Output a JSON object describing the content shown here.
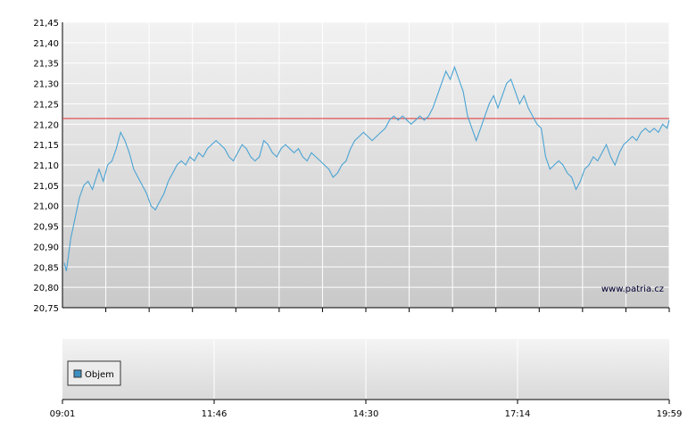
{
  "watermark": "www.patria.cz",
  "legend": {
    "label": "Objem"
  },
  "colors": {
    "price_line": "#4aa3d3",
    "reference_line": "#e03030",
    "legend_swatch": "#3d8fc0"
  },
  "chart_data": {
    "type": "line",
    "title": "",
    "xlabel": "",
    "ylabel": "",
    "grid": true,
    "ylim": [
      20.75,
      21.45
    ],
    "y_ticks": [
      "20,75",
      "20,80",
      "20,85",
      "20,90",
      "20,95",
      "21,00",
      "21,05",
      "21,10",
      "21,15",
      "21,20",
      "21,25",
      "21,30",
      "21,35",
      "21,40",
      "21,45"
    ],
    "x_tick_labels": [
      "09:01",
      "11:46",
      "14:30",
      "17:14",
      "19:59"
    ],
    "reference_line": 21.214,
    "series": [
      {
        "values": [
          [
            0,
            20.86
          ],
          [
            1,
            20.84
          ],
          [
            3,
            20.92
          ],
          [
            5,
            20.97
          ],
          [
            7,
            21.02
          ],
          [
            9,
            21.05
          ],
          [
            11,
            21.06
          ],
          [
            13,
            21.04
          ],
          [
            16,
            21.09
          ],
          [
            18,
            21.06
          ],
          [
            20,
            21.1
          ],
          [
            22,
            21.11
          ],
          [
            24,
            21.14
          ],
          [
            26,
            21.18
          ],
          [
            28,
            21.16
          ],
          [
            30,
            21.13
          ],
          [
            32,
            21.09
          ],
          [
            34,
            21.07
          ],
          [
            36,
            21.05
          ],
          [
            38,
            21.03
          ],
          [
            40,
            21.0
          ],
          [
            42,
            20.99
          ],
          [
            44,
            21.01
          ],
          [
            46,
            21.03
          ],
          [
            48,
            21.06
          ],
          [
            50,
            21.08
          ],
          [
            52,
            21.1
          ],
          [
            54,
            21.11
          ],
          [
            56,
            21.1
          ],
          [
            58,
            21.12
          ],
          [
            60,
            21.11
          ],
          [
            62,
            21.13
          ],
          [
            64,
            21.12
          ],
          [
            66,
            21.14
          ],
          [
            68,
            21.15
          ],
          [
            70,
            21.16
          ],
          [
            72,
            21.15
          ],
          [
            74,
            21.14
          ],
          [
            76,
            21.12
          ],
          [
            78,
            21.11
          ],
          [
            80,
            21.13
          ],
          [
            82,
            21.15
          ],
          [
            84,
            21.14
          ],
          [
            86,
            21.12
          ],
          [
            88,
            21.11
          ],
          [
            90,
            21.12
          ],
          [
            92,
            21.16
          ],
          [
            94,
            21.15
          ],
          [
            96,
            21.13
          ],
          [
            98,
            21.12
          ],
          [
            100,
            21.14
          ],
          [
            102,
            21.15
          ],
          [
            104,
            21.14
          ],
          [
            106,
            21.13
          ],
          [
            108,
            21.14
          ],
          [
            110,
            21.12
          ],
          [
            112,
            21.11
          ],
          [
            114,
            21.13
          ],
          [
            116,
            21.12
          ],
          [
            118,
            21.11
          ],
          [
            120,
            21.1
          ],
          [
            122,
            21.09
          ],
          [
            124,
            21.07
          ],
          [
            126,
            21.08
          ],
          [
            128,
            21.1
          ],
          [
            130,
            21.11
          ],
          [
            132,
            21.14
          ],
          [
            134,
            21.16
          ],
          [
            136,
            21.17
          ],
          [
            138,
            21.18
          ],
          [
            140,
            21.17
          ],
          [
            142,
            21.16
          ],
          [
            144,
            21.17
          ],
          [
            146,
            21.18
          ],
          [
            148,
            21.19
          ],
          [
            150,
            21.21
          ],
          [
            152,
            21.22
          ],
          [
            154,
            21.21
          ],
          [
            156,
            21.22
          ],
          [
            158,
            21.21
          ],
          [
            160,
            21.2
          ],
          [
            162,
            21.21
          ],
          [
            164,
            21.22
          ],
          [
            166,
            21.21
          ],
          [
            168,
            21.22
          ],
          [
            170,
            21.24
          ],
          [
            172,
            21.27
          ],
          [
            174,
            21.3
          ],
          [
            176,
            21.33
          ],
          [
            178,
            21.31
          ],
          [
            180,
            21.34
          ],
          [
            182,
            21.31
          ],
          [
            184,
            21.28
          ],
          [
            186,
            21.22
          ],
          [
            188,
            21.19
          ],
          [
            190,
            21.16
          ],
          [
            192,
            21.19
          ],
          [
            194,
            21.22
          ],
          [
            196,
            21.25
          ],
          [
            198,
            21.27
          ],
          [
            200,
            21.24
          ],
          [
            202,
            21.27
          ],
          [
            204,
            21.3
          ],
          [
            206,
            21.31
          ],
          [
            208,
            21.28
          ],
          [
            210,
            21.25
          ],
          [
            212,
            21.27
          ],
          [
            214,
            21.24
          ],
          [
            216,
            21.22
          ],
          [
            218,
            21.2
          ],
          [
            220,
            21.19
          ],
          [
            222,
            21.12
          ],
          [
            224,
            21.09
          ],
          [
            226,
            21.1
          ],
          [
            228,
            21.11
          ],
          [
            230,
            21.1
          ],
          [
            232,
            21.08
          ],
          [
            234,
            21.07
          ],
          [
            236,
            21.04
          ],
          [
            238,
            21.06
          ],
          [
            240,
            21.09
          ],
          [
            242,
            21.1
          ],
          [
            244,
            21.12
          ],
          [
            246,
            21.11
          ],
          [
            248,
            21.13
          ],
          [
            250,
            21.15
          ],
          [
            252,
            21.12
          ],
          [
            254,
            21.1
          ],
          [
            256,
            21.13
          ],
          [
            258,
            21.15
          ],
          [
            260,
            21.16
          ],
          [
            262,
            21.17
          ],
          [
            264,
            21.16
          ],
          [
            266,
            21.18
          ],
          [
            268,
            21.19
          ],
          [
            270,
            21.18
          ],
          [
            272,
            21.19
          ],
          [
            274,
            21.18
          ],
          [
            276,
            21.2
          ],
          [
            278,
            21.19
          ],
          [
            279,
            21.21
          ]
        ]
      }
    ]
  }
}
